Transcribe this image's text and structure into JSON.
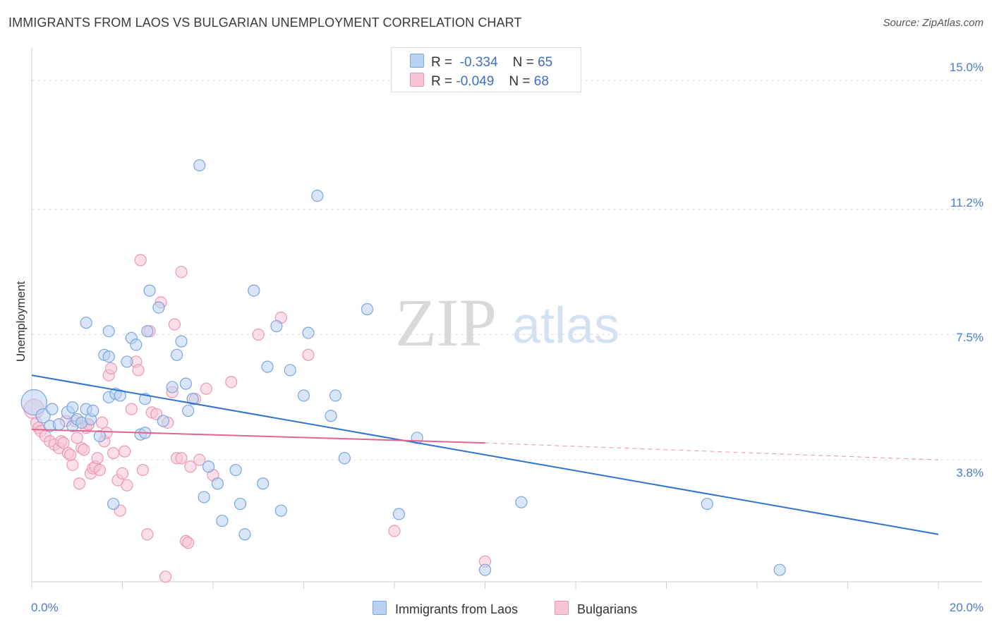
{
  "title": "IMMIGRANTS FROM LAOS VS BULGARIAN UNEMPLOYMENT CORRELATION CHART",
  "source": "Source: ZipAtlas.com",
  "watermark": {
    "zip": "ZIP",
    "atlas": "atlas"
  },
  "legend_top": [
    {
      "r_label": "R =",
      "r_value": "-0.334",
      "n_label": "N =",
      "n_value": "65"
    },
    {
      "r_label": "R =",
      "r_value": "-0.049",
      "n_label": "N =",
      "n_value": "68"
    }
  ],
  "legend_bottom": [
    {
      "label": "Immigrants from Laos"
    },
    {
      "label": "Bulgarians"
    }
  ],
  "colors": {
    "blue_fill": "#b9d2f2",
    "blue_stroke": "#7aa6e0",
    "blue_line": "#2f73d0",
    "pink_fill": "#f7c5d6",
    "pink_stroke": "#ec97b5",
    "pink_line": "#e2648e",
    "tick_text": "#4a7ccc",
    "grid": "#dddddd"
  },
  "chart_data": {
    "type": "scatter",
    "title": "IMMIGRANTS FROM LAOS VS BULGARIAN UNEMPLOYMENT CORRELATION CHART",
    "xlabel": "",
    "ylabel": "Unemployment",
    "x_tick_labels": [
      "0.0%",
      "20.0%"
    ],
    "y_tick_labels": [
      "15.0%",
      "11.2%",
      "7.5%",
      "3.8%"
    ],
    "y_tick_values": [
      15.0,
      11.2,
      7.5,
      3.8
    ],
    "xlim": [
      0,
      20
    ],
    "ylim": [
      0.2,
      15.8
    ],
    "grid": true,
    "series": [
      {
        "name": "Immigrants from Laos",
        "r": -0.334,
        "n": 65,
        "trend": {
          "x": [
            0,
            20
          ],
          "y": [
            6.3,
            1.6
          ]
        },
        "points": [
          [
            0.05,
            5.5,
            18
          ],
          [
            0.25,
            5.1,
            10
          ],
          [
            0.4,
            4.8,
            8
          ],
          [
            0.45,
            5.3,
            8
          ],
          [
            0.6,
            4.85,
            8
          ],
          [
            0.8,
            5.2,
            9
          ],
          [
            0.9,
            5.35,
            8
          ],
          [
            0.9,
            4.8,
            8
          ],
          [
            1.0,
            5.0,
            8
          ],
          [
            1.1,
            4.9,
            8
          ],
          [
            1.2,
            5.3,
            8
          ],
          [
            1.3,
            5.0,
            8
          ],
          [
            1.35,
            5.25,
            8
          ],
          [
            1.5,
            4.5,
            8
          ],
          [
            1.6,
            6.9,
            8
          ],
          [
            1.7,
            6.85,
            8
          ],
          [
            1.7,
            5.65,
            8
          ],
          [
            1.85,
            5.75,
            8
          ],
          [
            1.95,
            5.7,
            8
          ],
          [
            2.1,
            6.7,
            8
          ],
          [
            2.2,
            7.4,
            8
          ],
          [
            2.3,
            7.2,
            8
          ],
          [
            2.4,
            4.55,
            8
          ],
          [
            2.5,
            4.6,
            8
          ],
          [
            2.55,
            7.6,
            8
          ],
          [
            2.6,
            8.8,
            8
          ],
          [
            2.8,
            8.3,
            8
          ],
          [
            2.9,
            4.95,
            8
          ],
          [
            3.1,
            5.95,
            8
          ],
          [
            3.2,
            6.9,
            8
          ],
          [
            3.3,
            7.3,
            8
          ],
          [
            3.4,
            6.05,
            8
          ],
          [
            3.45,
            5.25,
            8
          ],
          [
            3.55,
            5.6,
            8
          ],
          [
            3.7,
            12.5,
            8
          ],
          [
            3.8,
            2.7,
            8
          ],
          [
            3.9,
            3.6,
            8
          ],
          [
            4.1,
            3.1,
            8
          ],
          [
            4.2,
            2.0,
            8
          ],
          [
            4.5,
            3.5,
            8
          ],
          [
            4.6,
            2.5,
            8
          ],
          [
            4.7,
            1.6,
            8
          ],
          [
            4.9,
            8.8,
            8
          ],
          [
            5.1,
            3.1,
            8
          ],
          [
            5.2,
            6.55,
            8
          ],
          [
            5.4,
            7.75,
            8
          ],
          [
            5.5,
            2.3,
            8
          ],
          [
            5.7,
            6.45,
            8
          ],
          [
            6.0,
            5.7,
            8
          ],
          [
            6.1,
            7.55,
            8
          ],
          [
            6.3,
            11.6,
            8
          ],
          [
            6.6,
            5.1,
            8
          ],
          [
            6.7,
            5.7,
            8
          ],
          [
            6.9,
            3.85,
            8
          ],
          [
            7.4,
            8.25,
            8
          ],
          [
            8.1,
            2.2,
            8
          ],
          [
            8.5,
            4.45,
            8
          ],
          [
            10.0,
            0.55,
            8
          ],
          [
            10.8,
            2.55,
            8
          ],
          [
            14.9,
            2.5,
            8
          ],
          [
            16.5,
            0.55,
            8
          ],
          [
            1.8,
            2.5,
            8
          ],
          [
            2.5,
            5.6,
            8
          ],
          [
            1.2,
            7.85,
            8
          ],
          [
            1.7,
            7.6,
            8
          ]
        ]
      },
      {
        "name": "Bulgarians",
        "r": -0.049,
        "n": 68,
        "trend": {
          "x": [
            0,
            10
          ],
          "y": [
            4.7,
            4.3
          ]
        },
        "trend_dashed": {
          "x": [
            10,
            20
          ],
          "y": [
            4.3,
            3.8
          ]
        },
        "points": [
          [
            0.05,
            5.3,
            14
          ],
          [
            0.1,
            4.9,
            8
          ],
          [
            0.15,
            4.75,
            8
          ],
          [
            0.2,
            4.65,
            8
          ],
          [
            0.3,
            4.5,
            8
          ],
          [
            0.4,
            4.35,
            8
          ],
          [
            0.5,
            4.25,
            8
          ],
          [
            0.6,
            4.15,
            8
          ],
          [
            0.65,
            4.35,
            8
          ],
          [
            0.7,
            4.3,
            8
          ],
          [
            0.8,
            4.0,
            8
          ],
          [
            0.9,
            3.65,
            8
          ],
          [
            0.95,
            4.95,
            8
          ],
          [
            1.0,
            4.45,
            8
          ],
          [
            1.05,
            3.1,
            8
          ],
          [
            1.1,
            4.15,
            8
          ],
          [
            1.2,
            4.75,
            8
          ],
          [
            1.25,
            4.85,
            8
          ],
          [
            1.3,
            3.4,
            8
          ],
          [
            1.35,
            3.55,
            8
          ],
          [
            1.4,
            3.6,
            8
          ],
          [
            1.45,
            3.85,
            8
          ],
          [
            1.5,
            3.5,
            8
          ],
          [
            1.55,
            4.9,
            8
          ],
          [
            1.6,
            4.35,
            8
          ],
          [
            1.65,
            4.6,
            8
          ],
          [
            1.7,
            6.3,
            8
          ],
          [
            1.75,
            6.5,
            8
          ],
          [
            1.8,
            4.0,
            8
          ],
          [
            1.9,
            3.2,
            8
          ],
          [
            1.95,
            2.3,
            8
          ],
          [
            2.0,
            3.4,
            8
          ],
          [
            2.1,
            3.05,
            8
          ],
          [
            2.2,
            5.3,
            8
          ],
          [
            2.3,
            6.7,
            8
          ],
          [
            2.35,
            6.45,
            8
          ],
          [
            2.4,
            9.7,
            8
          ],
          [
            2.45,
            3.5,
            8
          ],
          [
            2.55,
            1.6,
            8
          ],
          [
            2.6,
            7.6,
            8
          ],
          [
            2.65,
            5.2,
            8
          ],
          [
            2.75,
            5.15,
            8
          ],
          [
            2.85,
            8.45,
            8
          ],
          [
            2.95,
            0.35,
            8
          ],
          [
            3.0,
            4.9,
            8
          ],
          [
            3.1,
            5.8,
            8
          ],
          [
            3.15,
            7.8,
            8
          ],
          [
            3.2,
            3.85,
            8
          ],
          [
            3.3,
            3.85,
            8
          ],
          [
            3.4,
            1.4,
            8
          ],
          [
            3.45,
            1.35,
            8
          ],
          [
            3.5,
            3.6,
            8
          ],
          [
            3.6,
            5.6,
            8
          ],
          [
            3.7,
            3.8,
            8
          ],
          [
            3.85,
            5.9,
            8
          ],
          [
            4.0,
            3.35,
            8
          ],
          [
            4.4,
            6.1,
            8
          ],
          [
            5.0,
            7.5,
            8
          ],
          [
            5.5,
            8.0,
            8
          ],
          [
            6.1,
            6.9,
            8
          ],
          [
            3.3,
            9.35,
            8
          ],
          [
            8.0,
            1.7,
            8
          ],
          [
            10.0,
            0.8,
            8
          ],
          [
            1.15,
            4.1,
            8
          ],
          [
            1.25,
            4.85,
            8
          ],
          [
            0.85,
            3.95,
            8
          ],
          [
            0.75,
            4.95,
            8
          ],
          [
            2.05,
            4.05,
            8
          ]
        ]
      }
    ]
  }
}
